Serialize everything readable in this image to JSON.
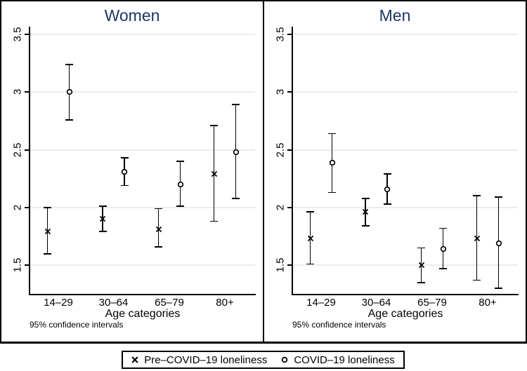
{
  "figure": {
    "kind": "two-panel errorbar chart",
    "background": "#ffffff"
  },
  "colors": {
    "title_text": "#1b3763",
    "axis": "#000000",
    "gridline": "#e6edf0",
    "marker": "#000000",
    "legend_border": "#000000"
  },
  "legend": {
    "entries": [
      {
        "marker": "x",
        "label": "Pre–COVID–19 loneliness"
      },
      {
        "marker": "circle",
        "label": "COVID–19 loneliness"
      }
    ]
  },
  "chart_data": [
    {
      "type": "scatter",
      "title": "Women",
      "categories": [
        "14–29",
        "30–64",
        "65–79",
        "80+"
      ],
      "xlabel": "Age categories",
      "note": "95% confidence intervals",
      "ylim": [
        1.25,
        3.55
      ],
      "yticks": [
        1.5,
        2,
        2.5,
        3,
        3.5
      ],
      "ytick_labels": [
        "1.5",
        "2",
        "2.5",
        "3",
        "3.5"
      ],
      "grid": true,
      "legend_position": "bottom-outside",
      "series": [
        {
          "name": "Pre–COVID–19 loneliness",
          "marker": "x",
          "values": [
            1.79,
            1.9,
            1.81,
            2.29
          ],
          "ci_low": [
            1.6,
            1.79,
            1.66,
            1.88
          ],
          "ci_high": [
            2.0,
            2.01,
            1.99,
            2.71
          ]
        },
        {
          "name": "COVID–19 loneliness",
          "marker": "circle",
          "values": [
            3.0,
            2.31,
            2.2,
            2.48
          ],
          "ci_low": [
            2.76,
            2.19,
            2.01,
            2.08
          ],
          "ci_high": [
            3.24,
            2.43,
            2.4,
            2.89
          ]
        }
      ]
    },
    {
      "type": "scatter",
      "title": "Men",
      "categories": [
        "14–29",
        "30–64",
        "65–79",
        "80+"
      ],
      "xlabel": "Age categories",
      "note": "95% confidence intervals",
      "ylim": [
        1.25,
        3.55
      ],
      "yticks": [
        1.5,
        2,
        2.5,
        3,
        3.5
      ],
      "ytick_labels": [
        "1.5",
        "2",
        "2.5",
        "3",
        "3.5"
      ],
      "grid": true,
      "legend_position": "bottom-outside",
      "series": [
        {
          "name": "Pre–COVID–19 loneliness",
          "marker": "x",
          "values": [
            1.73,
            1.96,
            1.5,
            1.73
          ],
          "ci_low": [
            1.51,
            1.84,
            1.35,
            1.37
          ],
          "ci_high": [
            1.96,
            2.08,
            1.65,
            2.1
          ]
        },
        {
          "name": "COVID–19 loneliness",
          "marker": "circle",
          "values": [
            2.39,
            2.16,
            1.64,
            1.69
          ],
          "ci_low": [
            2.13,
            2.03,
            1.47,
            1.3
          ],
          "ci_high": [
            2.64,
            2.29,
            1.82,
            2.09
          ]
        }
      ]
    }
  ]
}
